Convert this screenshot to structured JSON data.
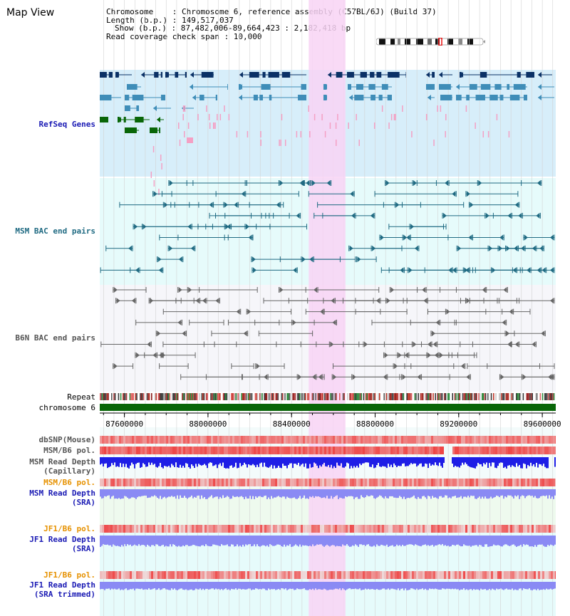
{
  "title": "Map View",
  "info": {
    "chromosome": "Chromosome    : Chromosome 6, reference assembly (C57BL/6J) (Build 37)",
    "length": "Length (b.p.) : 149,517,037",
    "show": "Show (b.p.) : 87,482,006-89,664,423 : 2,182,418 bp",
    "read_coverage": "Read coverage check span : 10,000"
  },
  "tracks": {
    "refseq": "RefSeq Genes",
    "msm_bac": "MSM BAC end pairs",
    "b6n_bac": "B6N BAC end pairs",
    "repeat": "Repeat",
    "chromosome": "chromosome 6",
    "dbsnp": "dbSNP(Mouse)",
    "msm_b6_pol_1": "MSM/B6 pol.",
    "msm_read_depth_cap_1": "MSM Read Depth",
    "msm_read_depth_cap_2": "(Capillary)",
    "msm_b6_pol_2": "MSM/B6 pol.",
    "msm_read_depth_sra_1": "MSM Read Depth",
    "msm_read_depth_sra_2": "(SRA)",
    "jf1_b6_pol_1": "JF1/B6 pol.",
    "jf1_read_depth_sra_1": "JF1 Read Depth",
    "jf1_read_depth_sra_2": "(SRA)",
    "jf1_b6_pol_2": "JF1/B6 pol.",
    "jf1_read_depth_trim_1": "JF1 Read Depth",
    "jf1_read_depth_trim_2": "(SRA trimmed)"
  },
  "axis": {
    "ticks": [
      "87600000",
      "88000000",
      "88400000",
      "88800000",
      "89200000",
      "89600000"
    ],
    "tick_values": [
      87600000,
      88000000,
      88400000,
      88800000,
      89200000,
      89600000
    ],
    "start": 87482006,
    "end": 89664423
  },
  "highlight": {
    "start": 88482000,
    "end": 88658000
  },
  "colors": {
    "refseq_bg": "#d7eefa",
    "msm_bg": "#e6fbfb",
    "b6n_bg": "#f6f6fa",
    "msm_sra_bg": "#eefaee",
    "jf1_bg": "#e6fbfb",
    "highlight": "#f8d4f4",
    "gene_dark": "#0b3166",
    "gene_mid": "#3f8db8",
    "gene_green": "#096608",
    "gene_pink": "#f4a0c4",
    "msm_bac": "#1f6a82",
    "b6n_bac": "#666666",
    "chromosome": "#096608",
    "depth_dark": "#1e1ee6",
    "depth_light": "#8a8af4",
    "pol_red": "#ee3a3a"
  }
}
